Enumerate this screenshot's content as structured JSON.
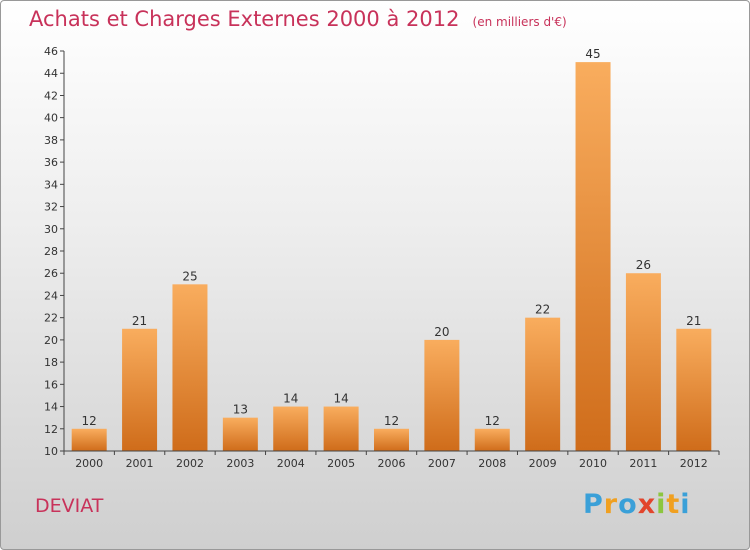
{
  "header": {
    "title": "Achats et Charges Externes 2000 à 2012",
    "unit": "(en milliers d'€)"
  },
  "footer": {
    "commune": "DEVIAT",
    "logo_text": "Proxiti"
  },
  "colors": {
    "title": "#c8325a",
    "bar_light": "#f7a95a",
    "bar_dark": "#d06e1c",
    "axis": "#444444"
  },
  "chart_data": {
    "type": "bar",
    "title": "Achats et Charges Externes 2000 à 2012",
    "subtitle": "(en milliers d'€)",
    "categories": [
      "2000",
      "2001",
      "2002",
      "2003",
      "2004",
      "2005",
      "2006",
      "2007",
      "2008",
      "2009",
      "2010",
      "2011",
      "2012"
    ],
    "values": [
      12,
      21,
      25,
      13,
      14,
      14,
      12,
      20,
      12,
      22,
      45,
      26,
      21
    ],
    "data_labels": [
      "12",
      "21",
      "25",
      "13",
      "14",
      "14",
      "12",
      "20",
      "12",
      "22",
      "45",
      "26",
      "21"
    ],
    "ylim": [
      10,
      46
    ],
    "yticks": [
      "10",
      "12",
      "14",
      "16",
      "18",
      "20",
      "22",
      "24",
      "26",
      "28",
      "30",
      "32",
      "34",
      "36",
      "38",
      "40",
      "42",
      "44",
      "46"
    ],
    "grid": false,
    "legend": "none"
  }
}
